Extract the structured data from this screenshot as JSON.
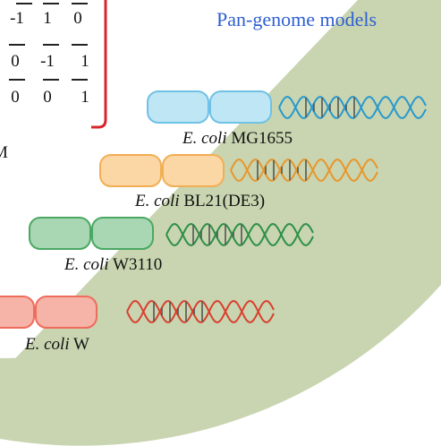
{
  "title": "Pan-genome models",
  "matrix": {
    "rows": [
      [
        "-1",
        "1",
        "0"
      ],
      [
        "0",
        "-1",
        "1"
      ],
      [
        "0",
        "0",
        "1"
      ]
    ],
    "bracket_color": "#d9242b"
  },
  "model_label_fragment": "M",
  "background_color": "#c8d5b0",
  "strains": [
    {
      "italic": "E. coli",
      "name": "MG1655",
      "cell_fill": "#bfe6f5",
      "cell_stroke": "#6fc1e6",
      "dna_color": "#2a98cc"
    },
    {
      "italic": "E. coli",
      "name": "BL21(DE3)",
      "cell_fill": "#fbd7a6",
      "cell_stroke": "#f2ae54",
      "dna_color": "#e8962b"
    },
    {
      "italic": "E. coli",
      "name": "W3110",
      "cell_fill": "#a9d7b3",
      "cell_stroke": "#4aa863",
      "dna_color": "#2e8f47"
    },
    {
      "italic": "E. coli",
      "name": "W",
      "cell_fill": "#f6b3a8",
      "cell_stroke": "#ee6c5c",
      "dna_color": "#d8402f"
    }
  ]
}
